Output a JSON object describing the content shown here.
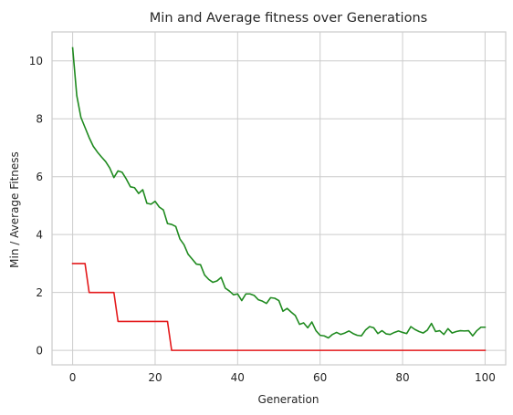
{
  "chart_data": {
    "type": "line",
    "title": "Min and Average fitness over Generations",
    "xlabel": "Generation",
    "ylabel": "Min / Average Fitness",
    "xlim": [
      -5,
      105
    ],
    "ylim": [
      -0.5,
      11
    ],
    "xticks": [
      0,
      20,
      40,
      60,
      80,
      100
    ],
    "yticks": [
      0,
      2,
      4,
      6,
      8,
      10
    ],
    "grid": true,
    "series": [
      {
        "color": "#e41a1c",
        "x": [
          0,
          3,
          4,
          10,
          11,
          23,
          24,
          100
        ],
        "y": [
          3,
          3,
          2,
          2,
          1,
          1,
          0,
          0
        ]
      },
      {
        "color": "#1f8a1f",
        "x": [
          0,
          1,
          2,
          3,
          4,
          5,
          6,
          7,
          8,
          9,
          10,
          11,
          12,
          13,
          14,
          15,
          16,
          17,
          18,
          19,
          20,
          21,
          22,
          23,
          24,
          25,
          26,
          27,
          28,
          29,
          30,
          31,
          32,
          33,
          34,
          35,
          36,
          37,
          38,
          39,
          40,
          41,
          42,
          43,
          44,
          45,
          46,
          47,
          48,
          49,
          50,
          51,
          52,
          53,
          54,
          55,
          56,
          57,
          58,
          59,
          60,
          61,
          62,
          63,
          64,
          65,
          66,
          67,
          68,
          69,
          70,
          71,
          72,
          73,
          74,
          75,
          76,
          77,
          78,
          79,
          80,
          81,
          82,
          83,
          84,
          85,
          86,
          87,
          88,
          89,
          90,
          91,
          92,
          93,
          94,
          95,
          96,
          97,
          98,
          99,
          100
        ],
        "y": [
          10.45,
          8.8,
          8.05,
          7.7,
          7.35,
          7.05,
          6.85,
          6.68,
          6.52,
          6.3,
          5.97,
          6.2,
          6.15,
          5.92,
          5.65,
          5.62,
          5.42,
          5.55,
          5.08,
          5.05,
          5.15,
          4.95,
          4.85,
          4.38,
          4.35,
          4.28,
          3.85,
          3.65,
          3.32,
          3.15,
          2.98,
          2.96,
          2.6,
          2.45,
          2.35,
          2.4,
          2.52,
          2.15,
          2.05,
          1.92,
          1.95,
          1.72,
          1.95,
          1.95,
          1.9,
          1.75,
          1.7,
          1.62,
          1.82,
          1.8,
          1.72,
          1.35,
          1.45,
          1.32,
          1.2,
          0.9,
          0.95,
          0.78,
          0.98,
          0.68,
          0.52,
          0.5,
          0.43,
          0.55,
          0.62,
          0.55,
          0.6,
          0.67,
          0.58,
          0.52,
          0.5,
          0.7,
          0.82,
          0.78,
          0.58,
          0.68,
          0.57,
          0.55,
          0.62,
          0.67,
          0.62,
          0.58,
          0.82,
          0.72,
          0.65,
          0.6,
          0.7,
          0.93,
          0.65,
          0.68,
          0.55,
          0.75,
          0.6,
          0.65,
          0.68,
          0.67,
          0.68,
          0.5,
          0.68,
          0.8,
          0.8
        ]
      }
    ]
  }
}
